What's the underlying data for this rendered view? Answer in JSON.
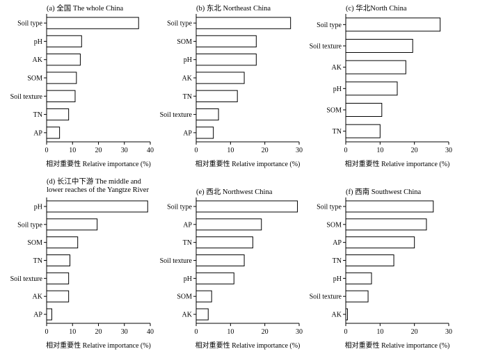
{
  "chart_data": [
    {
      "type": "bar",
      "orientation": "horizontal",
      "title": "(a) 全国 The whole China",
      "xlabel": "相对重要性 Relative importance (%)",
      "ylabel": "",
      "categories": [
        "Soil type",
        "pH",
        "AK",
        "SOM",
        "Soil texture",
        "TN",
        "AP"
      ],
      "values": [
        35.5,
        13.5,
        13,
        11.5,
        11,
        8.5,
        5
      ],
      "xlim": [
        0,
        40
      ],
      "xticks": [
        0,
        10,
        20,
        30,
        40
      ],
      "grid": false
    },
    {
      "type": "bar",
      "orientation": "horizontal",
      "title": "(b) 东北 Northeast China",
      "xlabel": "相对重要性 Relative importance (%)",
      "ylabel": "",
      "categories": [
        "Soil type",
        "SOM",
        "pH",
        "AK",
        "TN",
        "Soil texture",
        "AP"
      ],
      "values": [
        27.5,
        17.5,
        17.5,
        14,
        12,
        6.5,
        5
      ],
      "xlim": [
        0,
        30
      ],
      "xticks": [
        0,
        10,
        20,
        30
      ],
      "grid": false
    },
    {
      "type": "bar",
      "orientation": "horizontal",
      "title": "(c) 华北North China",
      "xlabel": "相对重要性 Relative importance (%)",
      "ylabel": "",
      "categories": [
        "Soil type",
        "Soil texture",
        "AK",
        "pH",
        "SOM",
        "TN"
      ],
      "values": [
        27.5,
        19.5,
        17.5,
        15,
        10.5,
        10
      ],
      "xlim": [
        0,
        30
      ],
      "xticks": [
        0,
        10,
        20,
        30
      ],
      "grid": false
    },
    {
      "type": "bar",
      "orientation": "horizontal",
      "title": "(d) 长江中下游 The middle and lower reaches of the Yangtze River",
      "xlabel": "相对重要性 Relative importance (%)",
      "ylabel": "",
      "categories": [
        "pH",
        "Soil type",
        "SOM",
        "TN",
        "Soil texture",
        "AK",
        "AP"
      ],
      "values": [
        39,
        19.5,
        12,
        9,
        8.5,
        8.5,
        2
      ],
      "xlim": [
        0,
        40
      ],
      "xticks": [
        0,
        10,
        20,
        30,
        40
      ],
      "grid": false
    },
    {
      "type": "bar",
      "orientation": "horizontal",
      "title": "(e) 西北 Northwest China",
      "xlabel": "相对重要性 Relative importance (%)",
      "ylabel": "",
      "categories": [
        "Soil type",
        "AP",
        "TN",
        "Soil texture",
        "pH",
        "SOM",
        "AK"
      ],
      "values": [
        29.5,
        19,
        16.5,
        14,
        11,
        4.5,
        3.5
      ],
      "xlim": [
        0,
        30
      ],
      "xticks": [
        0,
        10,
        20,
        30
      ],
      "grid": false
    },
    {
      "type": "bar",
      "orientation": "horizontal",
      "title": "(f) 西南 Southwest China",
      "xlabel": "相对重要性 Relative importance (%)",
      "ylabel": "",
      "categories": [
        "Soil type",
        "SOM",
        "AP",
        "TN",
        "pH",
        "Soil texture",
        "AK"
      ],
      "values": [
        25.5,
        23.5,
        20,
        14,
        7.5,
        6.5,
        0.5
      ],
      "xlim": [
        0,
        30
      ],
      "xticks": [
        0,
        10,
        20,
        30
      ],
      "grid": false
    }
  ],
  "style": {
    "bar_fill": "#ffffff",
    "bar_stroke": "#000000",
    "axis_color": "#000000"
  }
}
